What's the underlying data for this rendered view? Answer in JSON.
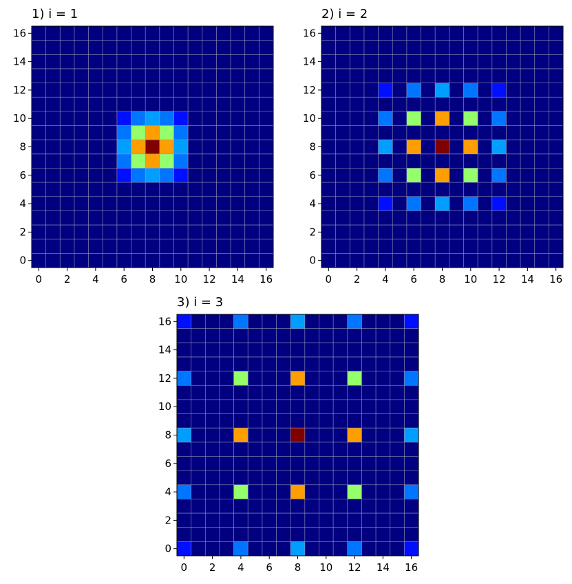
{
  "chart_data": [
    {
      "type": "heatmap",
      "title": "1) i = 1",
      "x_ticks": [
        0,
        2,
        4,
        6,
        8,
        10,
        12,
        14,
        16
      ],
      "y_ticks": [
        0,
        2,
        4,
        6,
        8,
        10,
        12,
        14,
        16
      ],
      "xlim": [
        -0.5,
        16.5
      ],
      "ylim": [
        -0.5,
        16.5
      ],
      "grid": true,
      "colormap": "jet",
      "value_range": [
        0,
        1
      ],
      "background_value": 0,
      "cells": [
        {
          "x": 8,
          "y": 8,
          "v": 1.0
        },
        {
          "x": 7,
          "y": 8,
          "v": 0.72
        },
        {
          "x": 9,
          "y": 8,
          "v": 0.72
        },
        {
          "x": 8,
          "y": 7,
          "v": 0.72
        },
        {
          "x": 8,
          "y": 9,
          "v": 0.72
        },
        {
          "x": 7,
          "y": 7,
          "v": 0.52
        },
        {
          "x": 9,
          "y": 7,
          "v": 0.52
        },
        {
          "x": 7,
          "y": 9,
          "v": 0.52
        },
        {
          "x": 9,
          "y": 9,
          "v": 0.52
        },
        {
          "x": 6,
          "y": 8,
          "v": 0.28
        },
        {
          "x": 10,
          "y": 8,
          "v": 0.28
        },
        {
          "x": 8,
          "y": 6,
          "v": 0.28
        },
        {
          "x": 8,
          "y": 10,
          "v": 0.28
        },
        {
          "x": 6,
          "y": 7,
          "v": 0.24
        },
        {
          "x": 6,
          "y": 9,
          "v": 0.24
        },
        {
          "x": 10,
          "y": 7,
          "v": 0.24
        },
        {
          "x": 10,
          "y": 9,
          "v": 0.24
        },
        {
          "x": 7,
          "y": 6,
          "v": 0.24
        },
        {
          "x": 9,
          "y": 6,
          "v": 0.24
        },
        {
          "x": 7,
          "y": 10,
          "v": 0.24
        },
        {
          "x": 9,
          "y": 10,
          "v": 0.24
        },
        {
          "x": 6,
          "y": 6,
          "v": 0.14
        },
        {
          "x": 10,
          "y": 6,
          "v": 0.14
        },
        {
          "x": 6,
          "y": 10,
          "v": 0.14
        },
        {
          "x": 10,
          "y": 10,
          "v": 0.14
        }
      ]
    },
    {
      "type": "heatmap",
      "title": "2) i = 2",
      "x_ticks": [
        0,
        2,
        4,
        6,
        8,
        10,
        12,
        14,
        16
      ],
      "y_ticks": [
        0,
        2,
        4,
        6,
        8,
        10,
        12,
        14,
        16
      ],
      "xlim": [
        -0.5,
        16.5
      ],
      "ylim": [
        -0.5,
        16.5
      ],
      "grid": true,
      "colormap": "jet",
      "value_range": [
        0,
        1
      ],
      "background_value": 0,
      "cells": [
        {
          "x": 8,
          "y": 8,
          "v": 1.0
        },
        {
          "x": 6,
          "y": 8,
          "v": 0.72
        },
        {
          "x": 10,
          "y": 8,
          "v": 0.72
        },
        {
          "x": 8,
          "y": 6,
          "v": 0.72
        },
        {
          "x": 8,
          "y": 10,
          "v": 0.72
        },
        {
          "x": 6,
          "y": 6,
          "v": 0.52
        },
        {
          "x": 10,
          "y": 6,
          "v": 0.52
        },
        {
          "x": 6,
          "y": 10,
          "v": 0.52
        },
        {
          "x": 10,
          "y": 10,
          "v": 0.52
        },
        {
          "x": 4,
          "y": 8,
          "v": 0.28
        },
        {
          "x": 12,
          "y": 8,
          "v": 0.28
        },
        {
          "x": 8,
          "y": 4,
          "v": 0.28
        },
        {
          "x": 8,
          "y": 12,
          "v": 0.28
        },
        {
          "x": 4,
          "y": 6,
          "v": 0.24
        },
        {
          "x": 4,
          "y": 10,
          "v": 0.24
        },
        {
          "x": 12,
          "y": 6,
          "v": 0.24
        },
        {
          "x": 12,
          "y": 10,
          "v": 0.24
        },
        {
          "x": 6,
          "y": 4,
          "v": 0.24
        },
        {
          "x": 10,
          "y": 4,
          "v": 0.24
        },
        {
          "x": 6,
          "y": 12,
          "v": 0.24
        },
        {
          "x": 10,
          "y": 12,
          "v": 0.24
        },
        {
          "x": 4,
          "y": 4,
          "v": 0.14
        },
        {
          "x": 12,
          "y": 4,
          "v": 0.14
        },
        {
          "x": 4,
          "y": 12,
          "v": 0.14
        },
        {
          "x": 12,
          "y": 12,
          "v": 0.14
        }
      ]
    },
    {
      "type": "heatmap",
      "title": "3) i = 3",
      "x_ticks": [
        0,
        2,
        4,
        6,
        8,
        10,
        12,
        14,
        16
      ],
      "y_ticks": [
        0,
        2,
        4,
        6,
        8,
        10,
        12,
        14,
        16
      ],
      "xlim": [
        -0.5,
        16.5
      ],
      "ylim": [
        -0.5,
        16.5
      ],
      "grid": true,
      "colormap": "jet",
      "value_range": [
        0,
        1
      ],
      "background_value": 0,
      "cells": [
        {
          "x": 8,
          "y": 8,
          "v": 1.0
        },
        {
          "x": 4,
          "y": 8,
          "v": 0.72
        },
        {
          "x": 12,
          "y": 8,
          "v": 0.72
        },
        {
          "x": 8,
          "y": 4,
          "v": 0.72
        },
        {
          "x": 8,
          "y": 12,
          "v": 0.72
        },
        {
          "x": 4,
          "y": 4,
          "v": 0.52
        },
        {
          "x": 12,
          "y": 4,
          "v": 0.52
        },
        {
          "x": 4,
          "y": 12,
          "v": 0.52
        },
        {
          "x": 12,
          "y": 12,
          "v": 0.52
        },
        {
          "x": 0,
          "y": 8,
          "v": 0.28
        },
        {
          "x": 16,
          "y": 8,
          "v": 0.28
        },
        {
          "x": 8,
          "y": 0,
          "v": 0.28
        },
        {
          "x": 8,
          "y": 16,
          "v": 0.28
        },
        {
          "x": 0,
          "y": 4,
          "v": 0.24
        },
        {
          "x": 0,
          "y": 12,
          "v": 0.24
        },
        {
          "x": 16,
          "y": 4,
          "v": 0.24
        },
        {
          "x": 16,
          "y": 12,
          "v": 0.24
        },
        {
          "x": 4,
          "y": 0,
          "v": 0.24
        },
        {
          "x": 12,
          "y": 0,
          "v": 0.24
        },
        {
          "x": 4,
          "y": 16,
          "v": 0.24
        },
        {
          "x": 12,
          "y": 16,
          "v": 0.24
        },
        {
          "x": 0,
          "y": 0,
          "v": 0.14
        },
        {
          "x": 16,
          "y": 0,
          "v": 0.14
        },
        {
          "x": 0,
          "y": 16,
          "v": 0.14
        },
        {
          "x": 16,
          "y": 16,
          "v": 0.14
        }
      ]
    }
  ]
}
